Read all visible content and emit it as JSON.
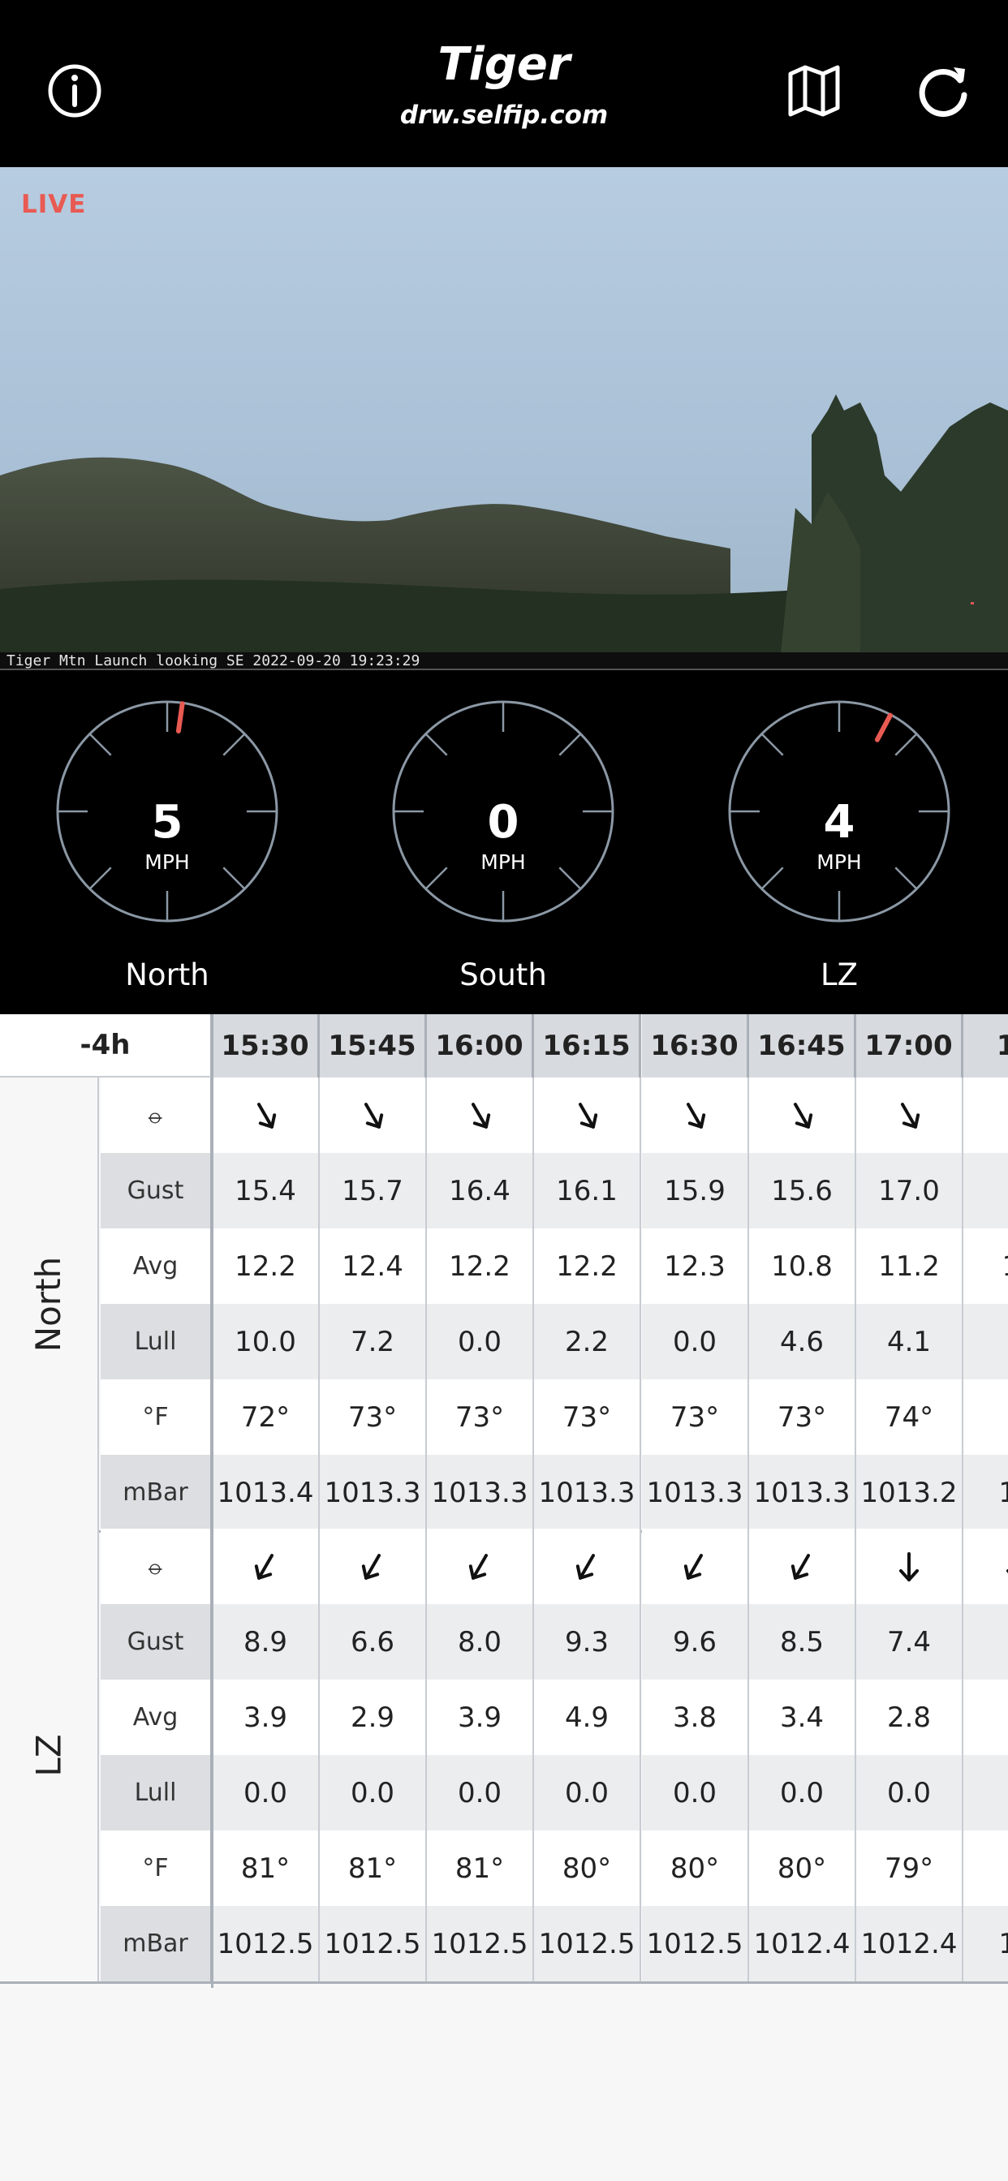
{
  "header": {
    "title": "Tiger",
    "subtitle": "drw.selfip.com",
    "info_icon": "info-icon",
    "map_icon": "map-icon",
    "refresh_icon": "refresh-icon"
  },
  "webcam": {
    "live_label": "LIVE",
    "caption": "Tiger Mtn Launch looking SE 2022-09-20 19:23:29"
  },
  "gauges": [
    {
      "name": "North",
      "speed": "5",
      "unit": "MPH",
      "direction_deg": 8
    },
    {
      "name": "South",
      "speed": "0",
      "unit": "MPH",
      "direction_deg": null
    },
    {
      "name": "LZ",
      "speed": "4",
      "unit": "MPH",
      "direction_deg": 28
    }
  ],
  "colors": {
    "accent": "#e85a52",
    "gauge_ring": "#8b98a5",
    "header_cell": "#d7dade",
    "stripe": "#ecedef"
  },
  "table": {
    "offset_label": "-4h",
    "times": [
      "15:30",
      "15:45",
      "16:00",
      "16:15",
      "16:30",
      "16:45",
      "17:00",
      "17"
    ],
    "row_labels": [
      "⦵",
      "Gust",
      "Avg",
      "Lull",
      "°F",
      "mBar"
    ],
    "groups": [
      {
        "name": "North",
        "direction_deg": [
          330,
          330,
          330,
          330,
          330,
          330,
          330,
          330
        ],
        "gust": [
          "15.4",
          "15.7",
          "16.4",
          "16.1",
          "15.9",
          "15.6",
          "17.0",
          "1"
        ],
        "avg": [
          "12.2",
          "12.4",
          "12.2",
          "12.2",
          "12.3",
          "10.8",
          "11.2",
          "1("
        ],
        "lull": [
          "10.0",
          "7.2",
          "0.0",
          "2.2",
          "0.0",
          "4.6",
          "4.1",
          "3"
        ],
        "temp": [
          "72°",
          "73°",
          "73°",
          "73°",
          "73°",
          "73°",
          "74°",
          "7"
        ],
        "pressure": [
          "1013.4",
          "1013.3",
          "1013.3",
          "1013.3",
          "1013.3",
          "1013.3",
          "1013.2",
          "10"
        ]
      },
      {
        "name": "LZ",
        "direction_deg": [
          30,
          30,
          30,
          30,
          30,
          30,
          0,
          0
        ],
        "gust": [
          "8.9",
          "6.6",
          "8.0",
          "9.3",
          "9.6",
          "8.5",
          "7.4",
          "6"
        ],
        "avg": [
          "3.9",
          "2.9",
          "3.9",
          "4.9",
          "3.8",
          "3.4",
          "2.8",
          "3"
        ],
        "lull": [
          "0.0",
          "0.0",
          "0.0",
          "0.0",
          "0.0",
          "0.0",
          "0.0",
          "0"
        ],
        "temp": [
          "81°",
          "81°",
          "81°",
          "80°",
          "80°",
          "80°",
          "79°",
          "7"
        ],
        "pressure": [
          "1012.5",
          "1012.5",
          "1012.5",
          "1012.5",
          "1012.5",
          "1012.4",
          "1012.4",
          "10"
        ]
      }
    ]
  }
}
